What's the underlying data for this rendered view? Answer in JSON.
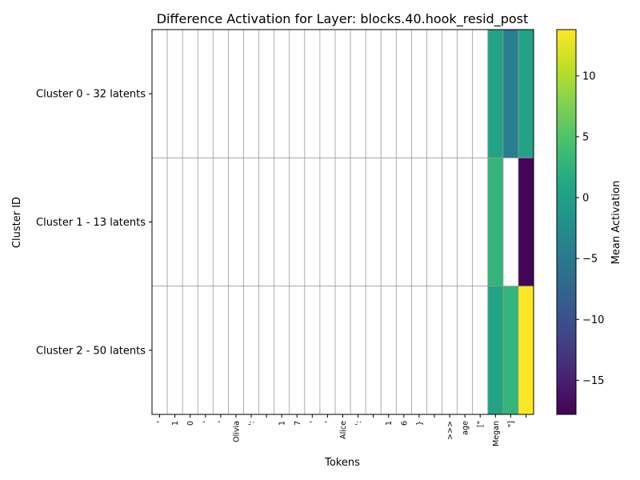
{
  "chart_data": {
    "type": "heatmap",
    "title": "Difference Activation for Layer: blocks.40.hook_resid_post",
    "xlabel": "Tokens",
    "ylabel": "Cluster ID",
    "colorbar_label": "Mean Activation",
    "colormap": "viridis",
    "color_range": [
      -17.8,
      13.8
    ],
    "colorbar_ticks": [
      10,
      5,
      0,
      -5,
      -10,
      -15
    ],
    "colorbar_tick_labels": [
      "10",
      "5",
      "0",
      "−5",
      "−10",
      "−15"
    ],
    "grid": true,
    "rows": [
      "Cluster 0 - 32 latents",
      "Cluster 1 - 13 latents",
      "Cluster 2 - 50 latents"
    ],
    "tokens": [
      "'",
      "1",
      "0",
      "'",
      "'",
      "Olivia",
      "':",
      "",
      "1",
      "7",
      "'",
      "'",
      "Alice",
      "':",
      "",
      "1",
      "6",
      "}",
      "",
      ">>>",
      "age",
      "[\"",
      "Megan",
      "\"]",
      ""
    ],
    "values": [
      [
        null,
        null,
        null,
        null,
        null,
        null,
        null,
        null,
        null,
        null,
        null,
        null,
        null,
        null,
        null,
        null,
        null,
        null,
        null,
        null,
        null,
        null,
        0.5,
        -4.5,
        0.5
      ],
      [
        null,
        null,
        null,
        null,
        null,
        null,
        null,
        null,
        null,
        null,
        null,
        null,
        null,
        null,
        null,
        null,
        null,
        null,
        null,
        null,
        null,
        null,
        2.8,
        null,
        -17.5
      ],
      [
        null,
        null,
        null,
        null,
        null,
        null,
        null,
        null,
        null,
        null,
        null,
        null,
        null,
        null,
        null,
        null,
        null,
        null,
        null,
        null,
        null,
        null,
        0.5,
        2.8,
        13.8
      ]
    ]
  }
}
